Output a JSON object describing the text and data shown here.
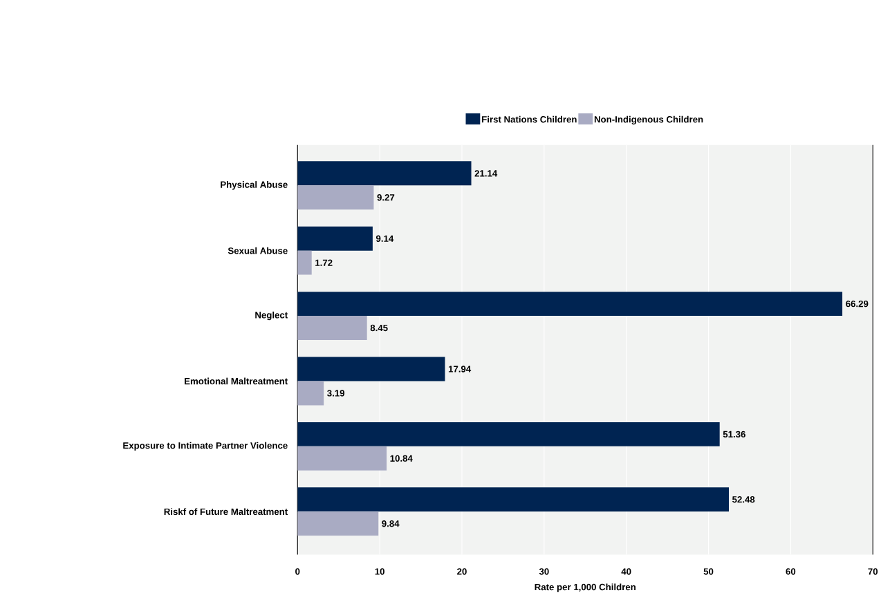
{
  "chart_data": {
    "type": "bar",
    "orientation": "horizontal",
    "categories": [
      "Physical Abuse",
      "Sexual Abuse",
      "Neglect",
      "Emotional Maltreatment",
      "Exposure to Intimate Partner Violence",
      "Riskf of Future Maltreatment"
    ],
    "series": [
      {
        "name": "First Nations Children",
        "color": "#002452",
        "values": [
          21.14,
          9.14,
          66.29,
          17.94,
          51.36,
          52.48
        ]
      },
      {
        "name": "Non-Indigenous Children",
        "color": "#a9abc3",
        "values": [
          9.27,
          1.72,
          8.45,
          3.19,
          10.84,
          9.84
        ]
      }
    ],
    "xlabel": "Rate per 1,000 Children",
    "xlim": [
      0,
      70
    ],
    "xticks": [
      0,
      10,
      20,
      30,
      40,
      50,
      60,
      70
    ],
    "grid": "x",
    "legend": "top",
    "data_labels": true
  }
}
